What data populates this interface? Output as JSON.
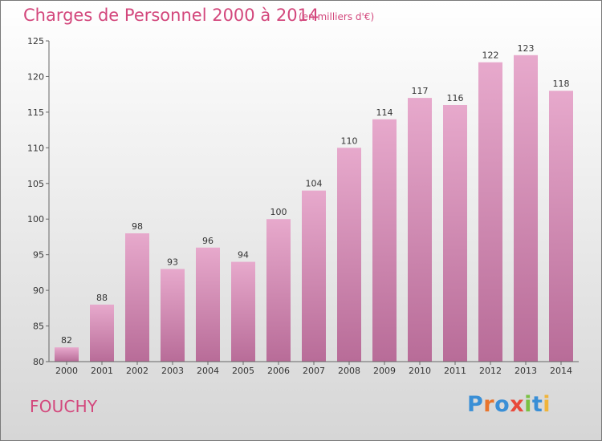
{
  "header": {
    "title": "Charges de Personnel 2000 à 2014",
    "unit": "(en milliers d'€)"
  },
  "footer": {
    "commune": "FOUCHY",
    "brand": "Proxiti"
  },
  "colors": {
    "accent": "#d3477c",
    "bar_top": "#e7a9cc",
    "bar_bottom": "#b86c98",
    "logo": [
      "#3a8fd6",
      "#e8742c",
      "#3a8fd6",
      "#e84a3c",
      "#7ac143",
      "#3a8fd6",
      "#f0b43a"
    ]
  },
  "chart_data": {
    "type": "bar",
    "title": "Charges de Personnel 2000 à 2014",
    "subtitle": "(en milliers d'€)",
    "categories": [
      "2000",
      "2001",
      "2002",
      "2003",
      "2004",
      "2005",
      "2006",
      "2007",
      "2008",
      "2009",
      "2010",
      "2011",
      "2012",
      "2013",
      "2014"
    ],
    "values": [
      82,
      88,
      98,
      93,
      96,
      94,
      100,
      104,
      110,
      114,
      117,
      116,
      122,
      123,
      118
    ],
    "ylim": [
      80,
      125
    ],
    "yticks": [
      80,
      85,
      90,
      95,
      100,
      105,
      110,
      115,
      120,
      125
    ],
    "grid": false,
    "data_labels": true
  }
}
